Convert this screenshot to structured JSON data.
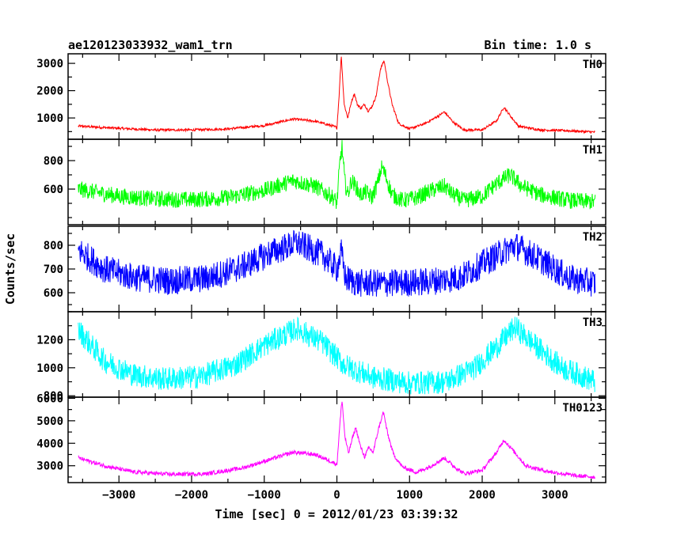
{
  "header": {
    "title": "ae120123033932_wam1_trn",
    "bin_time": "Bin time: 1.0 s"
  },
  "axes": {
    "xlabel": "Time [sec] 0 = 2012/01/23 03:39:32",
    "ylabel": "Counts/sec"
  },
  "chart_data": {
    "type": "line",
    "xlim": [
      -3700,
      3700
    ],
    "x_ticks": [
      -3000,
      -2000,
      -1000,
      0,
      1000,
      2000,
      3000
    ],
    "x_tick_labels": [
      "−3000",
      "−2000",
      "−1000",
      "0",
      "1000",
      "2000",
      "3000"
    ],
    "x_range": [
      -3560,
      3560
    ],
    "panels": [
      {
        "name": "TH0",
        "color": "#ff0000",
        "ylim": [
          220,
          3350
        ],
        "y_ticks": [
          1000,
          2000,
          3000
        ],
        "y_tick_labels": [
          "1000",
          "2000",
          "3000"
        ],
        "noise": 45,
        "curve": [
          [
            -3560,
            700
          ],
          [
            -3000,
            620
          ],
          [
            -2500,
            560
          ],
          [
            -2000,
            560
          ],
          [
            -1500,
            600
          ],
          [
            -1000,
            720
          ],
          [
            -600,
            960
          ],
          [
            -300,
            880
          ],
          [
            -50,
            700
          ],
          [
            0,
            640
          ],
          [
            30,
            1800
          ],
          [
            60,
            3300
          ],
          [
            100,
            1500
          ],
          [
            150,
            1000
          ],
          [
            200,
            1600
          ],
          [
            240,
            1900
          ],
          [
            280,
            1500
          ],
          [
            330,
            1350
          ],
          [
            380,
            1500
          ],
          [
            430,
            1250
          ],
          [
            480,
            1400
          ],
          [
            540,
            1800
          ],
          [
            600,
            2800
          ],
          [
            650,
            3100
          ],
          [
            700,
            2300
          ],
          [
            760,
            1500
          ],
          [
            850,
            800
          ],
          [
            1000,
            600
          ],
          [
            1200,
            780
          ],
          [
            1350,
            1000
          ],
          [
            1480,
            1220
          ],
          [
            1600,
            850
          ],
          [
            1750,
            560
          ],
          [
            2000,
            560
          ],
          [
            2200,
            900
          ],
          [
            2300,
            1400
          ],
          [
            2380,
            1100
          ],
          [
            2500,
            700
          ],
          [
            2800,
            560
          ],
          [
            3200,
            530
          ],
          [
            3560,
            480
          ]
        ]
      },
      {
        "name": "TH1",
        "color": "#00ff00",
        "ylim": [
          350,
          950
        ],
        "y_ticks": [
          600,
          800
        ],
        "y_tick_labels": [
          "600",
          "800"
        ],
        "noise": 58,
        "curve": [
          [
            -3560,
            600
          ],
          [
            -3000,
            550
          ],
          [
            -2500,
            530
          ],
          [
            -2000,
            525
          ],
          [
            -1500,
            540
          ],
          [
            -1000,
            590
          ],
          [
            -600,
            660
          ],
          [
            -300,
            620
          ],
          [
            -50,
            540
          ],
          [
            0,
            500
          ],
          [
            40,
            780
          ],
          [
            70,
            900
          ],
          [
            110,
            650
          ],
          [
            150,
            560
          ],
          [
            200,
            660
          ],
          [
            260,
            620
          ],
          [
            320,
            560
          ],
          [
            400,
            580
          ],
          [
            480,
            540
          ],
          [
            560,
            640
          ],
          [
            620,
            760
          ],
          [
            680,
            680
          ],
          [
            760,
            560
          ],
          [
            900,
            520
          ],
          [
            1100,
            540
          ],
          [
            1300,
            590
          ],
          [
            1480,
            620
          ],
          [
            1600,
            560
          ],
          [
            1750,
            520
          ],
          [
            2000,
            550
          ],
          [
            2200,
            640
          ],
          [
            2380,
            700
          ],
          [
            2550,
            620
          ],
          [
            2800,
            560
          ],
          [
            3200,
            520
          ],
          [
            3560,
            510
          ]
        ]
      },
      {
        "name": "TH2",
        "color": "#0000ff",
        "ylim": [
          520,
          880
        ],
        "y_ticks": [
          600,
          700,
          800
        ],
        "y_tick_labels": [
          "600",
          "700",
          "800"
        ],
        "noise": 60,
        "curve": [
          [
            -3560,
            780
          ],
          [
            -3200,
            700
          ],
          [
            -2800,
            665
          ],
          [
            -2300,
            650
          ],
          [
            -1800,
            660
          ],
          [
            -1300,
            710
          ],
          [
            -900,
            770
          ],
          [
            -550,
            810
          ],
          [
            -200,
            760
          ],
          [
            0,
            700
          ],
          [
            60,
            770
          ],
          [
            120,
            660
          ],
          [
            300,
            640
          ],
          [
            700,
            640
          ],
          [
            1200,
            645
          ],
          [
            1700,
            665
          ],
          [
            2100,
            740
          ],
          [
            2450,
            800
          ],
          [
            2800,
            740
          ],
          [
            3200,
            660
          ],
          [
            3560,
            640
          ]
        ]
      },
      {
        "name": "TH3",
        "color": "#00ffff",
        "ylim": [
          790,
          1400
        ],
        "y_ticks": [
          800,
          1000,
          1200
        ],
        "y_tick_labels": [
          "800",
          "1000",
          "1200"
        ],
        "noise": 85,
        "curve": [
          [
            -3560,
            1270
          ],
          [
            -3200,
            1050
          ],
          [
            -2800,
            950
          ],
          [
            -2400,
            920
          ],
          [
            -1900,
            935
          ],
          [
            -1400,
            1020
          ],
          [
            -1000,
            1160
          ],
          [
            -550,
            1280
          ],
          [
            -200,
            1180
          ],
          [
            100,
            1020
          ],
          [
            500,
            930
          ],
          [
            1000,
            890
          ],
          [
            1500,
            900
          ],
          [
            1900,
            1000
          ],
          [
            2200,
            1150
          ],
          [
            2450,
            1290
          ],
          [
            2750,
            1150
          ],
          [
            3100,
            1000
          ],
          [
            3560,
            900
          ]
        ]
      },
      {
        "name": "TH0123",
        "color": "#ff00ff",
        "ylim": [
          2250,
          6050
        ],
        "y_ticks": [
          3000,
          4000,
          5000,
          6000
        ],
        "y_tick_labels": [
          "3000",
          "4000",
          "5000",
          "6000"
        ],
        "noise": 90,
        "curve": [
          [
            -3560,
            3350
          ],
          [
            -3200,
            3000
          ],
          [
            -2800,
            2720
          ],
          [
            -2300,
            2620
          ],
          [
            -1800,
            2640
          ],
          [
            -1300,
            2900
          ],
          [
            -900,
            3300
          ],
          [
            -600,
            3600
          ],
          [
            -300,
            3500
          ],
          [
            -50,
            3150
          ],
          [
            0,
            3050
          ],
          [
            40,
            4800
          ],
          [
            70,
            5950
          ],
          [
            110,
            4300
          ],
          [
            160,
            3550
          ],
          [
            220,
            4300
          ],
          [
            260,
            4700
          ],
          [
            320,
            3900
          ],
          [
            380,
            3400
          ],
          [
            440,
            3800
          ],
          [
            500,
            3600
          ],
          [
            570,
            4600
          ],
          [
            640,
            5400
          ],
          [
            700,
            4400
          ],
          [
            780,
            3500
          ],
          [
            900,
            2950
          ],
          [
            1100,
            2700
          ],
          [
            1300,
            3000
          ],
          [
            1480,
            3350
          ],
          [
            1600,
            3000
          ],
          [
            1750,
            2650
          ],
          [
            2000,
            2800
          ],
          [
            2200,
            3600
          ],
          [
            2300,
            4150
          ],
          [
            2420,
            3700
          ],
          [
            2600,
            3000
          ],
          [
            2900,
            2750
          ],
          [
            3300,
            2550
          ],
          [
            3560,
            2500
          ]
        ]
      }
    ]
  }
}
